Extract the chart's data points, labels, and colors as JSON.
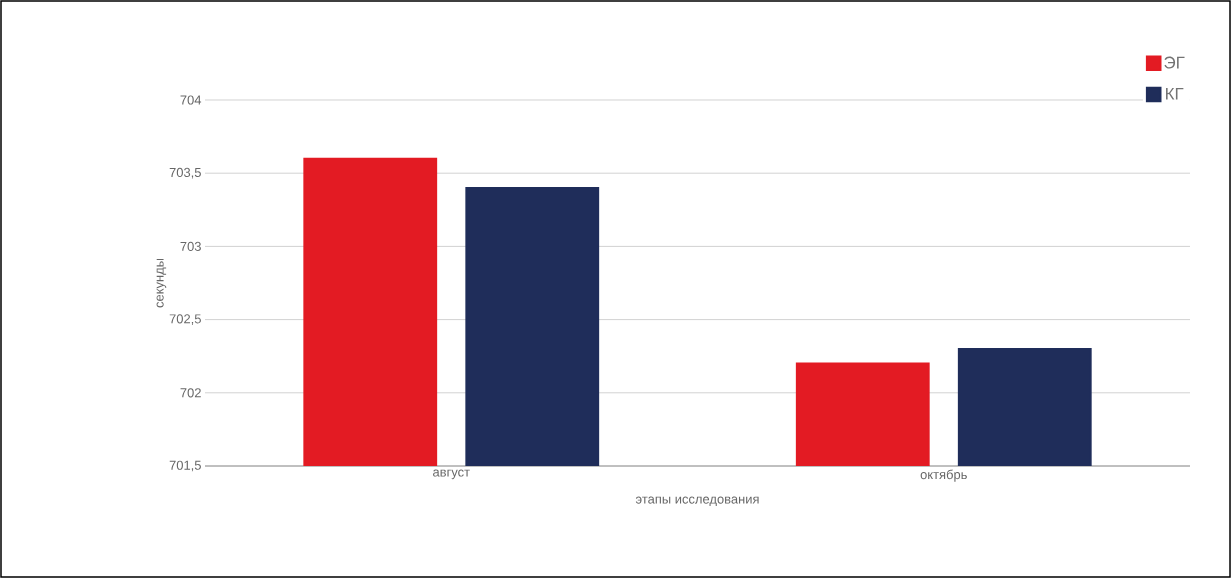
{
  "chart_data": {
    "type": "bar",
    "xlabel": "этапы исследования",
    "ylabel": "секунды",
    "categories": [
      "август",
      "октябрь"
    ],
    "series": [
      {
        "name": "ЭГ",
        "color": "#e31b23",
        "values": [
          703.6,
          702.2
        ]
      },
      {
        "name": "КГ",
        "color": "#1f2d5a",
        "values": [
          703.4,
          702.3
        ]
      }
    ],
    "ylim": [
      701.5,
      704
    ],
    "yticks": [
      {
        "value": 701.5,
        "label": "701,5"
      },
      702,
      {
        "value": 702.5,
        "label": "702,5"
      },
      703,
      {
        "value": 703.5,
        "label": "703,5"
      },
      704
    ],
    "grid": "y",
    "legend": "top right"
  }
}
